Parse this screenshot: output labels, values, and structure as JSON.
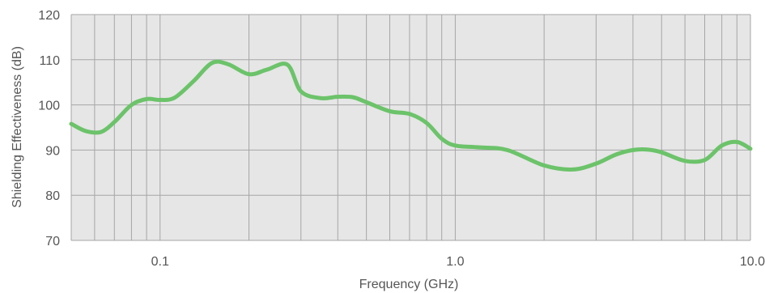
{
  "chart_data": {
    "type": "line",
    "title": "",
    "xlabel": "Frequency (GHz)",
    "ylabel": "Shielding Effectiveness (dB)",
    "xscale": "log",
    "xlim": [
      0.05,
      10.0
    ],
    "ylim": [
      70,
      120
    ],
    "xticks": [
      {
        "value": 0.1,
        "label": "0.1"
      },
      {
        "value": 1.0,
        "label": "1.0"
      },
      {
        "value": 10.0,
        "label": "10.0"
      }
    ],
    "yticks": [
      {
        "value": 70,
        "label": "70"
      },
      {
        "value": 80,
        "label": "80"
      },
      {
        "value": 90,
        "label": "90"
      },
      {
        "value": 100,
        "label": "100"
      },
      {
        "value": 110,
        "label": "110"
      },
      {
        "value": 120,
        "label": "120"
      }
    ],
    "grid": true,
    "legend": "none",
    "series": [
      {
        "color": "#6cc36a",
        "x": [
          0.05,
          0.056,
          0.063,
          0.07,
          0.08,
          0.09,
          0.1,
          0.112,
          0.13,
          0.15,
          0.17,
          0.2,
          0.23,
          0.27,
          0.3,
          0.35,
          0.4,
          0.45,
          0.5,
          0.6,
          0.7,
          0.8,
          0.9,
          1.0,
          1.2,
          1.5,
          2.0,
          2.5,
          3.0,
          3.5,
          4.0,
          4.5,
          5.0,
          6.0,
          7.0,
          8.0,
          9.0,
          10.0
        ],
        "y": [
          95.8,
          94.2,
          94.0,
          96.2,
          100.0,
          101.3,
          101.1,
          101.6,
          105.3,
          109.3,
          109.0,
          106.8,
          107.8,
          108.9,
          103.0,
          101.5,
          101.8,
          101.7,
          100.6,
          98.6,
          98.0,
          96.0,
          92.5,
          91.0,
          90.6,
          90.0,
          86.6,
          85.7,
          87.0,
          89.0,
          90.0,
          90.1,
          89.5,
          87.6,
          87.8,
          91.0,
          91.8,
          90.3
        ]
      }
    ]
  }
}
